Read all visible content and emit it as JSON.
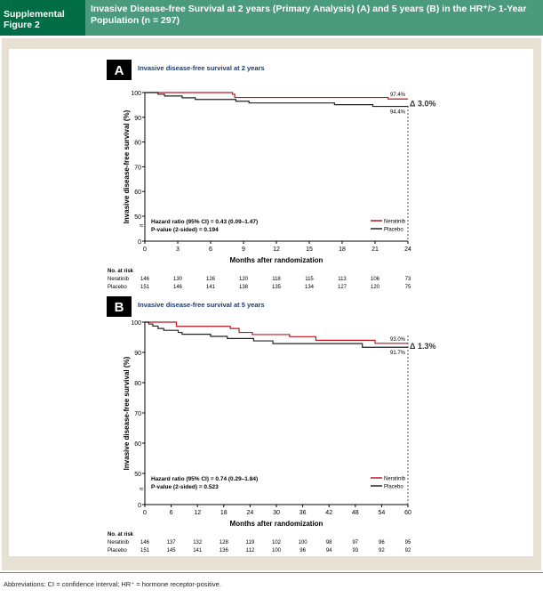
{
  "header": {
    "label": "Supplemental Figure 2",
    "title": "Invasive Disease-free Survival at 2 years (Primary Analysis) (A) and 5 years (B) in the HR⁺/> 1-Year Population (n = 297)"
  },
  "footer": "Abbreviations: CI = confidence interval; HR⁺ = hormone receptor-positive.",
  "colors": {
    "neratinib": "#c0141e",
    "placebo": "#222222",
    "header_dark": "#006d47",
    "header_light": "#4a9a7c"
  },
  "chart_data": [
    {
      "type": "line",
      "panel": "A",
      "title": "Invasive disease-free survival at 2 years",
      "xlabel": "Months after randomization",
      "ylabel": "Invasive disease-free survival (%)",
      "xlim": [
        0,
        24
      ],
      "ylim": [
        0,
        100
      ],
      "xticks": [
        0,
        3,
        6,
        9,
        12,
        15,
        18,
        21,
        24
      ],
      "yticks": [
        0,
        50,
        60,
        70,
        80,
        90,
        100
      ],
      "series": [
        {
          "name": "Neratinib",
          "x": [
            0,
            8,
            8.2,
            22.2,
            24
          ],
          "y": [
            100,
            99.3,
            98,
            97.4,
            97.4
          ]
        },
        {
          "name": "Placebo",
          "x": [
            0,
            1.2,
            1.8,
            3.4,
            4.6,
            8.3,
            9.5,
            17.3,
            20.8,
            24
          ],
          "y": [
            100,
            99.3,
            98.6,
            97.9,
            97.2,
            96.5,
            95.8,
            95.1,
            94.4,
            94.4
          ]
        }
      ],
      "end_labels": {
        "neratinib": "97.4%",
        "placebo": "94.4%",
        "delta": "Δ 3.0%"
      },
      "stats": [
        "Hazard ratio (95% CI) = 0.43 (0.09–1.47)",
        "P-value (2-sided) = 0.194"
      ],
      "legend": "bottom-right",
      "risk": {
        "header": "No. at risk",
        "rows": [
          {
            "name": "Neratinib",
            "values": [
              146,
              130,
              126,
              120,
              118,
              115,
              113,
              106,
              73
            ]
          },
          {
            "name": "Placebo",
            "values": [
              151,
              146,
              141,
              138,
              135,
              134,
              127,
              120,
              75
            ]
          }
        ]
      }
    },
    {
      "type": "line",
      "panel": "B",
      "title": "Invasive disease-free survival at 5 years",
      "xlabel": "Months after randomization",
      "ylabel": "Invasive disease-free survival (%)",
      "xlim": [
        0,
        60
      ],
      "ylim": [
        0,
        100
      ],
      "xticks": [
        0,
        6,
        12,
        18,
        24,
        30,
        36,
        42,
        48,
        54,
        60
      ],
      "yticks": [
        0,
        50,
        60,
        70,
        80,
        90,
        100
      ],
      "series": [
        {
          "name": "Neratinib",
          "x": [
            0,
            7.2,
            19.5,
            21.5,
            24.5,
            33,
            39,
            52.5,
            60
          ],
          "y": [
            100,
            98.6,
            97.9,
            96.6,
            95.9,
            95.2,
            94,
            93,
            93
          ]
        },
        {
          "name": "Placebo",
          "x": [
            0,
            0.9,
            1.8,
            3,
            4.3,
            7.6,
            8.5,
            15,
            18.8,
            24.8,
            29.2,
            49.6,
            60
          ],
          "y": [
            100,
            99.4,
            98.7,
            97.9,
            97.3,
            96.6,
            96,
            95.3,
            94.6,
            93.8,
            92.9,
            91.7,
            91.7
          ]
        }
      ],
      "end_labels": {
        "neratinib": "93.0%",
        "placebo": "91.7%",
        "delta": "Δ 1.3%"
      },
      "stats": [
        "Hazard ratio (95% CI) = 0.74 (0.29–1.84)",
        "P-value (2-sided) = 0.523"
      ],
      "legend": "bottom-right",
      "risk": {
        "header": "No. at risk",
        "rows": [
          {
            "name": "Neratinib",
            "values": [
              146,
              137,
              132,
              128,
              119,
              102,
              100,
              98,
              97,
              96,
              95
            ]
          },
          {
            "name": "Placebo",
            "values": [
              151,
              145,
              141,
              136,
              112,
              100,
              96,
              94,
              93,
              92,
              92
            ]
          }
        ]
      }
    }
  ]
}
